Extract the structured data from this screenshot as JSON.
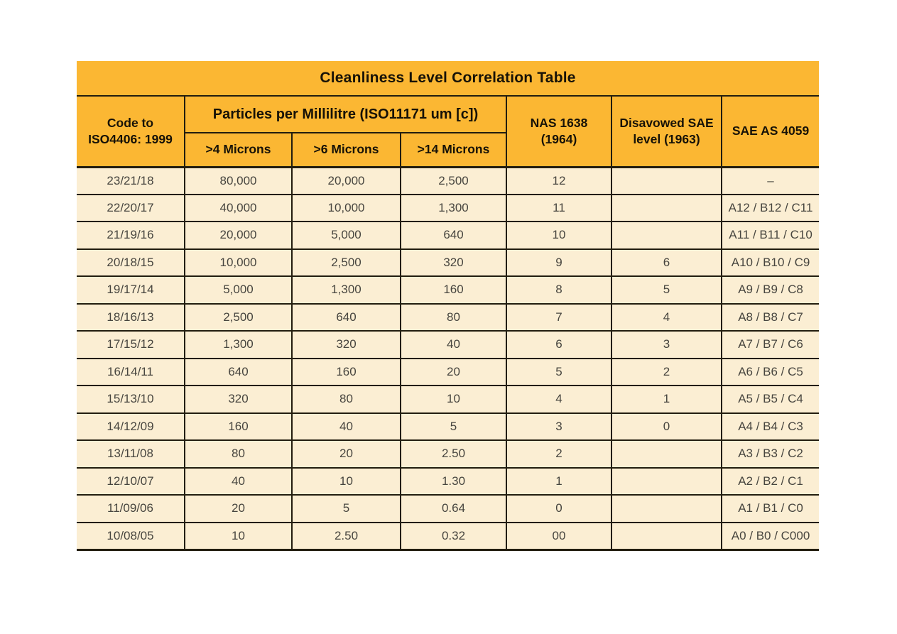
{
  "title": "Cleanliness Level Correlation Table",
  "colors": {
    "header_bg": "#FBB733",
    "row_bg": "#FBEED3",
    "border": "#221D0F",
    "data_text": "#47453F"
  },
  "table": {
    "col_code_line1": "Code to",
    "col_code_line2": "ISO4406: 1999",
    "group_header": "Particles per Millilitre (ISO11171 um [c])",
    "sub_headers": {
      "gt4": ">4 Microns",
      "gt6": ">6 Microns",
      "gt14": ">14 Microns"
    },
    "col_nas_line1": "NAS 1638",
    "col_nas_line2": "(1964)",
    "col_sae_level_line1": "Disavowed SAE",
    "col_sae_level_line2": "level (1963)",
    "col_sae_as": "SAE AS 4059",
    "row_keys": [
      "code",
      "gt4",
      "gt6",
      "gt14",
      "nas",
      "sae_level",
      "sae_as"
    ],
    "rows": [
      {
        "code": "23/21/18",
        "gt4": "80,000",
        "gt6": "20,000",
        "gt14": "2,500",
        "nas": "12",
        "sae_level": "",
        "sae_as": "–"
      },
      {
        "code": "22/20/17",
        "gt4": "40,000",
        "gt6": "10,000",
        "gt14": "1,300",
        "nas": "11",
        "sae_level": "",
        "sae_as": "A12 / B12 / C11"
      },
      {
        "code": "21/19/16",
        "gt4": "20,000",
        "gt6": "5,000",
        "gt14": "640",
        "nas": "10",
        "sae_level": "",
        "sae_as": "A11 / B11 / C10"
      },
      {
        "code": "20/18/15",
        "gt4": "10,000",
        "gt6": "2,500",
        "gt14": "320",
        "nas": "9",
        "sae_level": "6",
        "sae_as": "A10 / B10 / C9"
      },
      {
        "code": "19/17/14",
        "gt4": "5,000",
        "gt6": "1,300",
        "gt14": "160",
        "nas": "8",
        "sae_level": "5",
        "sae_as": "A9 / B9 / C8"
      },
      {
        "code": "18/16/13",
        "gt4": "2,500",
        "gt6": "640",
        "gt14": "80",
        "nas": "7",
        "sae_level": "4",
        "sae_as": "A8 / B8 / C7"
      },
      {
        "code": "17/15/12",
        "gt4": "1,300",
        "gt6": "320",
        "gt14": "40",
        "nas": "6",
        "sae_level": "3",
        "sae_as": "A7 / B7 / C6"
      },
      {
        "code": "16/14/11",
        "gt4": "640",
        "gt6": "160",
        "gt14": "20",
        "nas": "5",
        "sae_level": "2",
        "sae_as": "A6 / B6 / C5"
      },
      {
        "code": "15/13/10",
        "gt4": "320",
        "gt6": "80",
        "gt14": "10",
        "nas": "4",
        "sae_level": "1",
        "sae_as": "A5 / B5 / C4"
      },
      {
        "code": "14/12/09",
        "gt4": "160",
        "gt6": "40",
        "gt14": "5",
        "nas": "3",
        "sae_level": "0",
        "sae_as": "A4 / B4 / C3"
      },
      {
        "code": "13/11/08",
        "gt4": "80",
        "gt6": "20",
        "gt14": "2.50",
        "nas": "2",
        "sae_level": "",
        "sae_as": "A3 / B3 / C2"
      },
      {
        "code": "12/10/07",
        "gt4": "40",
        "gt6": "10",
        "gt14": "1.30",
        "nas": "1",
        "sae_level": "",
        "sae_as": "A2 / B2 / C1"
      },
      {
        "code": "11/09/06",
        "gt4": "20",
        "gt6": "5",
        "gt14": "0.64",
        "nas": "0",
        "sae_level": "",
        "sae_as": "A1 / B1 / C0"
      },
      {
        "code": "10/08/05",
        "gt4": "10",
        "gt6": "2.50",
        "gt14": "0.32",
        "nas": "00",
        "sae_level": "",
        "sae_as": "A0 / B0 / C000"
      }
    ]
  }
}
